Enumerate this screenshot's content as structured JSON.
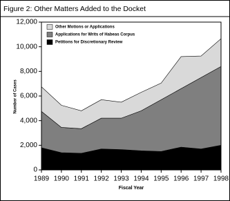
{
  "chart_data": {
    "type": "stacked-area",
    "title": "Figure 2:  Other Matters Added to the Docket",
    "x_label": "Fiscal Year",
    "y_label": "Number of Cases",
    "categories": [
      "1989",
      "1990",
      "1991",
      "1992",
      "1993",
      "1994",
      "1995",
      "1996",
      "1997",
      "1998"
    ],
    "series": [
      {
        "name": "Other Motions or Applications",
        "color": "#d9d9d9",
        "values": [
          2000,
          1800,
          1450,
          1500,
          1300,
          1500,
          1350,
          2600,
          1750,
          2250
        ]
      },
      {
        "name": "Applications for Writs of Habeas Corpus",
        "color": "#7f7f7f",
        "values": [
          2950,
          2050,
          2000,
          2500,
          2550,
          3250,
          4200,
          4750,
          5800,
          6400
        ]
      },
      {
        "name": "Petitions for Discretionary Review",
        "color": "#000000",
        "values": [
          1800,
          1400,
          1350,
          1700,
          1650,
          1550,
          1500,
          1850,
          1700,
          2000
        ]
      }
    ],
    "ylim": [
      0,
      12000
    ],
    "yticks": [
      0,
      {
        "value": 2000,
        "label": "2,000"
      },
      {
        "value": 4000,
        "label": "4,000"
      },
      {
        "value": 6000,
        "label": "6,000"
      },
      {
        "value": 8000,
        "label": "8,000"
      },
      {
        "value": 10000,
        "label": "10,000"
      },
      {
        "value": 12000,
        "label": "12,000"
      }
    ]
  }
}
